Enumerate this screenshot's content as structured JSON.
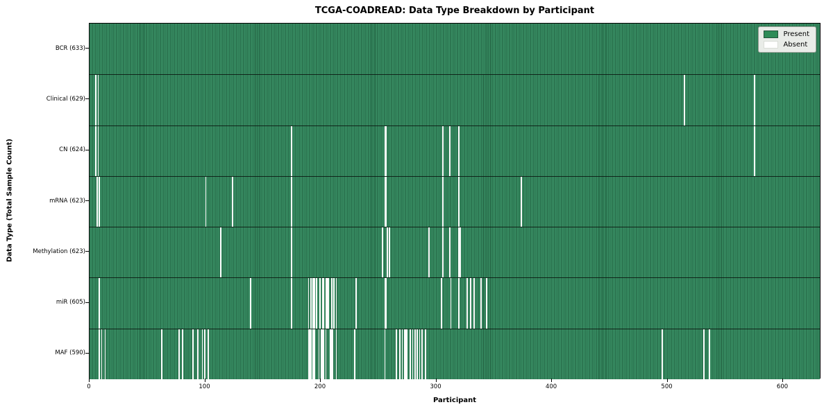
{
  "title": "TCGA-COADREAD: Data Type Breakdown by Participant",
  "xlabel": "Participant",
  "ylabel": "Data Type (Total Sample Count)",
  "legend": {
    "present_label": "Present",
    "absent_label": "Absent"
  },
  "colors": {
    "present_fill": "#2e8b57",
    "bar_edge": "#1f5a3c",
    "absent_fill": "#ffffff",
    "row_separator": "#0a140e",
    "legend_bg": "#e9ece8"
  },
  "chart_data": {
    "type": "heatmap",
    "title": "TCGA-COADREAD: Data Type Breakdown by Participant",
    "xlabel": "Participant",
    "ylabel": "Data Type (Total Sample Count)",
    "legend_entries": [
      "Present",
      "Absent"
    ],
    "legend_position": "upper right",
    "total_participants": 633,
    "x_range": [
      0,
      633
    ],
    "x_ticks": [
      0,
      100,
      200,
      300,
      400,
      500,
      600
    ],
    "rows": [
      {
        "label": "BCR (633)",
        "data_type": "BCR",
        "sample_count": 633,
        "absent_participants": []
      },
      {
        "label": "Clinical (629)",
        "data_type": "Clinical",
        "sample_count": 629,
        "absent_participants": [
          5,
          7,
          514,
          575
        ]
      },
      {
        "label": "CN (624)",
        "data_type": "CN",
        "sample_count": 624,
        "absent_participants": [
          5,
          7,
          174,
          255,
          256,
          305,
          311,
          319,
          575
        ]
      },
      {
        "label": "mRNA (623)",
        "data_type": "mRNA",
        "sample_count": 623,
        "absent_participants": [
          6,
          8,
          100,
          123,
          174,
          255,
          256,
          305,
          319,
          373
        ]
      },
      {
        "label": "Methylation (623)",
        "data_type": "Methylation",
        "sample_count": 623,
        "absent_participants": [
          113,
          174,
          253,
          257,
          259,
          293,
          305,
          311,
          319,
          320
        ]
      },
      {
        "label": "miR (605)",
        "data_type": "miR",
        "sample_count": 605,
        "absent_participants": [
          8,
          139,
          174,
          189,
          191,
          193,
          194,
          196,
          199,
          201,
          202,
          204,
          205,
          206,
          209,
          211,
          213,
          230,
          255,
          256,
          304,
          312,
          319,
          326,
          329,
          332,
          338,
          343
        ]
      },
      {
        "label": "MAF (590)",
        "data_type": "MAF",
        "sample_count": 590,
        "absent_participants": [
          8,
          10,
          13,
          62,
          77,
          80,
          89,
          93,
          97,
          99,
          102,
          189,
          190,
          191,
          193,
          194,
          198,
          200,
          201,
          202,
          204,
          208,
          209,
          210,
          213,
          229,
          255,
          265,
          268,
          270,
          272,
          273,
          274,
          277,
          279,
          281,
          283,
          285,
          287,
          290,
          495,
          531,
          536
        ]
      }
    ]
  }
}
